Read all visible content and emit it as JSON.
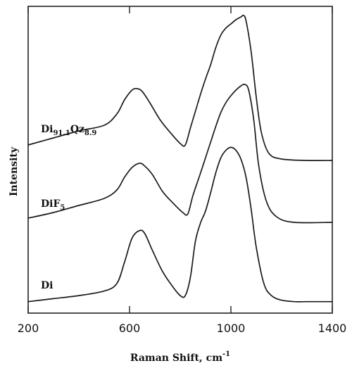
{
  "chart_data": {
    "type": "line",
    "title": "",
    "xlabel": "Raman Shift, cm",
    "xlabel_superscript": "-1",
    "ylabel": "Intensity",
    "xlim": [
      200,
      1400
    ],
    "xticks": [
      200,
      600,
      1000,
      1400
    ],
    "xtick_labels": [
      "200",
      "600",
      "1000",
      "1400"
    ],
    "yticks": false,
    "grid": false,
    "legend": "none",
    "series_labels_inline": true,
    "series": [
      {
        "label_base": "Di",
        "label_sub1": "91.1",
        "label_mid": "Qz",
        "label_sub2": "8.9",
        "x": [
          200,
          300,
          400,
          500,
          550,
          580,
          610,
          630,
          650,
          680,
          720,
          760,
          800,
          820,
          840,
          860,
          880,
          900,
          920,
          940,
          960,
          980,
          1000,
          1020,
          1040,
          1050,
          1060,
          1080,
          1100,
          1120,
          1150,
          1200,
          1300,
          1400
        ],
        "y": [
          0.13,
          0.18,
          0.23,
          0.27,
          0.35,
          0.45,
          0.52,
          0.53,
          0.51,
          0.43,
          0.31,
          0.22,
          0.14,
          0.13,
          0.25,
          0.37,
          0.49,
          0.6,
          0.7,
          0.82,
          0.91,
          0.96,
          0.99,
          1.02,
          1.04,
          1.05,
          1.01,
          0.79,
          0.47,
          0.22,
          0.07,
          0.03,
          0.02,
          0.02
        ]
      },
      {
        "label_base": "DiF",
        "label_sub1": "5",
        "x": [
          200,
          300,
          400,
          500,
          550,
          580,
          610,
          640,
          660,
          690,
          730,
          770,
          810,
          830,
          850,
          880,
          900,
          920,
          940,
          960,
          980,
          1000,
          1020,
          1040,
          1055,
          1070,
          1090,
          1110,
          1140,
          1180,
          1250,
          1400
        ],
        "y": [
          0.06,
          0.1,
          0.15,
          0.2,
          0.26,
          0.35,
          0.42,
          0.45,
          0.43,
          0.37,
          0.25,
          0.17,
          0.1,
          0.09,
          0.22,
          0.38,
          0.49,
          0.6,
          0.71,
          0.81,
          0.88,
          0.93,
          0.97,
          1.0,
          1.01,
          0.97,
          0.76,
          0.43,
          0.18,
          0.07,
          0.03,
          0.03
        ]
      },
      {
        "label_base": "Di",
        "x": [
          200,
          300,
          400,
          500,
          550,
          580,
          610,
          640,
          660,
          690,
          730,
          770,
          800,
          820,
          840,
          860,
          880,
          900,
          920,
          940,
          960,
          980,
          1000,
          1020,
          1040,
          1060,
          1080,
          1100,
          1130,
          1160,
          1200,
          1250,
          1300,
          1400
        ],
        "y": [
          0.02,
          0.04,
          0.06,
          0.09,
          0.14,
          0.28,
          0.44,
          0.49,
          0.47,
          0.36,
          0.22,
          0.12,
          0.06,
          0.06,
          0.18,
          0.42,
          0.54,
          0.62,
          0.74,
          0.87,
          0.97,
          1.02,
          1.04,
          1.02,
          0.96,
          0.84,
          0.63,
          0.38,
          0.14,
          0.06,
          0.03,
          0.02,
          0.02,
          0.02
        ]
      }
    ]
  }
}
